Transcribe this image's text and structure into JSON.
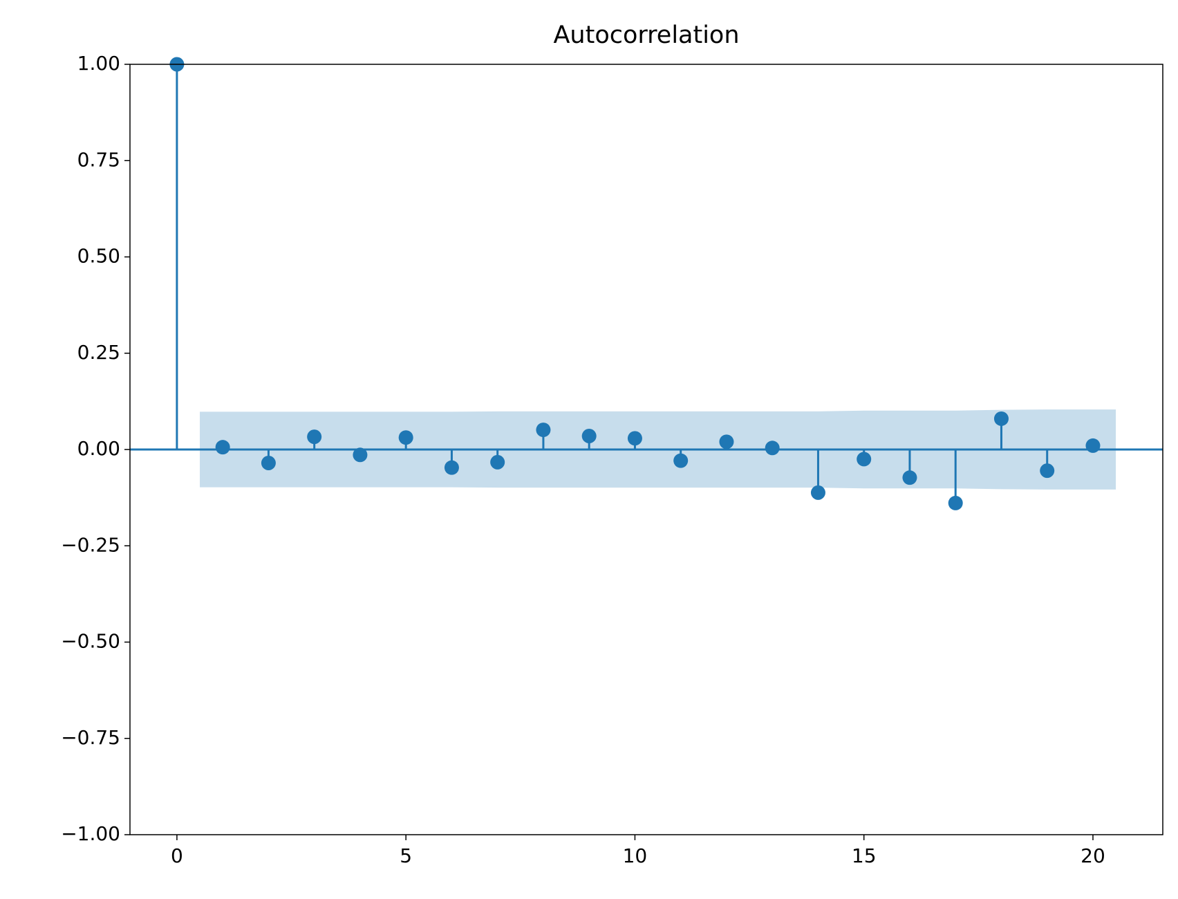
{
  "chart_data": {
    "type": "stem",
    "title": "Autocorrelation",
    "x": [
      0,
      1,
      2,
      3,
      4,
      5,
      6,
      7,
      8,
      9,
      10,
      11,
      12,
      13,
      14,
      15,
      16,
      17,
      18,
      19,
      20
    ],
    "values": [
      1.0,
      0.006,
      -0.035,
      0.033,
      -0.014,
      0.031,
      -0.047,
      -0.033,
      0.051,
      0.035,
      0.029,
      -0.029,
      0.02,
      0.004,
      -0.112,
      -0.025,
      -0.073,
      -0.139,
      0.08,
      -0.055,
      0.01
    ],
    "color": "#1f77b4",
    "confint_x": [
      1,
      2,
      3,
      4,
      5,
      6,
      7,
      8,
      9,
      10,
      11,
      12,
      13,
      14,
      15,
      16,
      17,
      18,
      19,
      20
    ],
    "confint_upper": [
      0.098,
      0.098,
      0.098,
      0.098,
      0.098,
      0.098,
      0.099,
      0.099,
      0.099,
      0.099,
      0.099,
      0.099,
      0.099,
      0.099,
      0.101,
      0.101,
      0.101,
      0.103,
      0.104,
      0.104
    ],
    "confint_lower": [
      -0.098,
      -0.098,
      -0.098,
      -0.098,
      -0.098,
      -0.098,
      -0.099,
      -0.099,
      -0.099,
      -0.099,
      -0.099,
      -0.099,
      -0.099,
      -0.099,
      -0.101,
      -0.101,
      -0.101,
      -0.103,
      -0.104,
      -0.104
    ],
    "xlim": [
      -1.025,
      21.525
    ],
    "ylim": [
      -1.0,
      1.0
    ],
    "xticks": [
      0,
      5,
      10,
      15,
      20
    ],
    "yticks": [
      {
        "value": -1.0,
        "label": "−1.00"
      },
      {
        "value": -0.75,
        "label": "−0.75"
      },
      {
        "value": -0.5,
        "label": "−0.50"
      },
      {
        "value": -0.25,
        "label": "−0.25"
      },
      {
        "value": 0.0,
        "label": "0.00"
      },
      {
        "value": 0.25,
        "label": "0.25"
      },
      {
        "value": 0.5,
        "label": "0.50"
      },
      {
        "value": 0.75,
        "label": "0.75"
      },
      {
        "value": 1.0,
        "label": "1.00"
      }
    ]
  }
}
